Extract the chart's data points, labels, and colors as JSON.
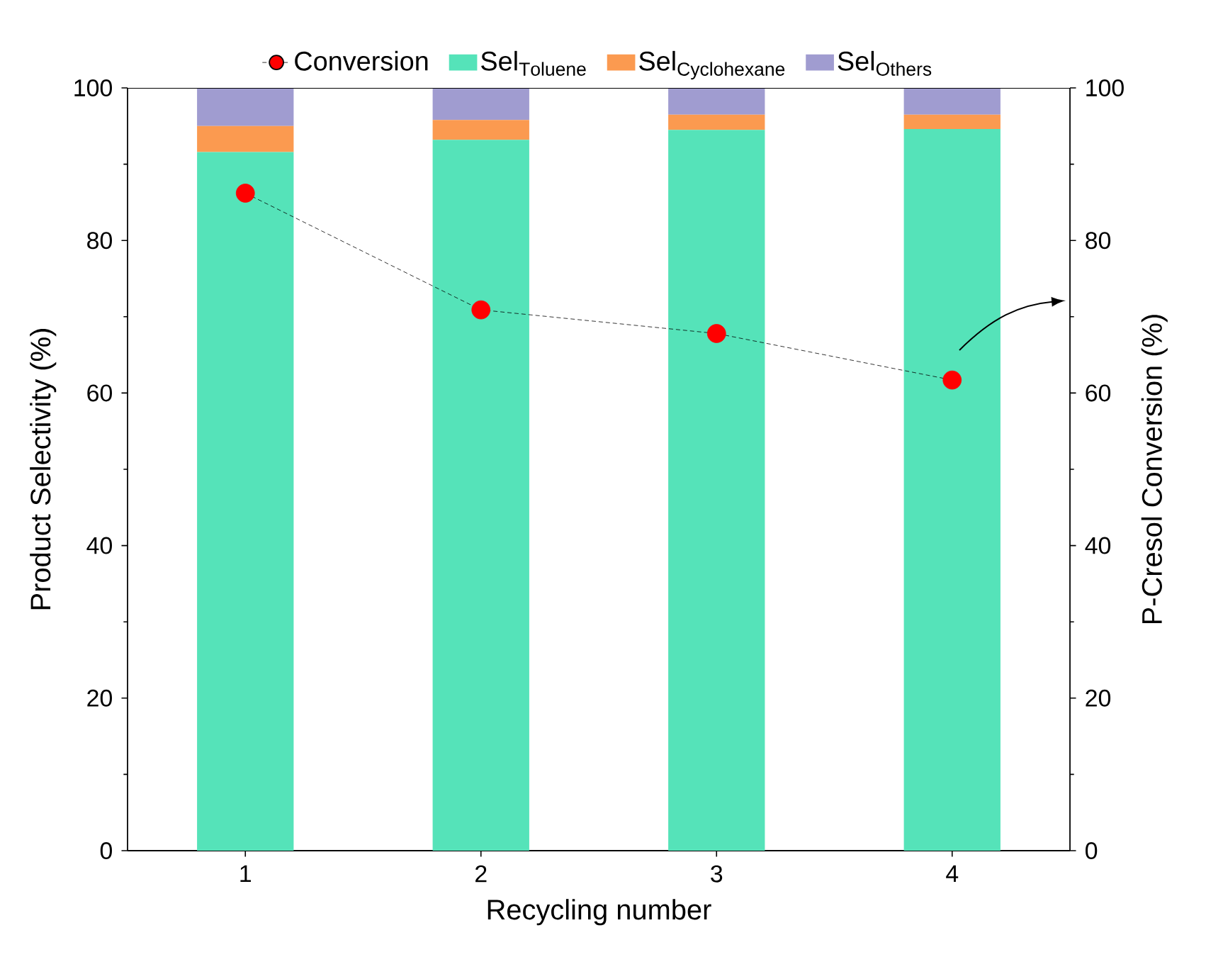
{
  "chart_data": {
    "type": "bar",
    "xlabel": "Recycling number",
    "ylabel": "Product Selectivity (%)",
    "y2label": "P-Cresol Conversion (%)",
    "categories": [
      "1",
      "2",
      "3",
      "4"
    ],
    "stacked": true,
    "legend": "top",
    "ylim": [
      0,
      100
    ],
    "yticks": [
      0,
      20,
      40,
      60,
      80,
      100
    ],
    "y2lim": [
      0,
      100
    ],
    "y2ticks": [
      0,
      20,
      40,
      60,
      80,
      100
    ],
    "series": [
      {
        "name": "Conversion",
        "type": "line",
        "axis": "y2",
        "color": "#ff0000",
        "marker": "circle",
        "line_style": "dashed",
        "values": [
          86.2,
          70.9,
          67.8,
          61.7
        ]
      },
      {
        "name": "\\mathrm{Sel}_{\\mathrm{Toluene}}",
        "type": "bar",
        "color": "#55e3b9",
        "values": [
          91.6,
          93.2,
          94.5,
          94.6
        ]
      },
      {
        "name": "\\mathrm{Sel}_{\\mathrm{Cyclohexane}}",
        "type": "bar",
        "color": "#fb9a50",
        "values": [
          3.4,
          2.6,
          2.0,
          1.9
        ]
      },
      {
        "name": "\\mathrm{Sel}_{\\mathrm{Others}}",
        "type": "bar",
        "color": "#a09cd0",
        "values": [
          5.0,
          4.2,
          3.5,
          3.5
        ]
      }
    ]
  }
}
